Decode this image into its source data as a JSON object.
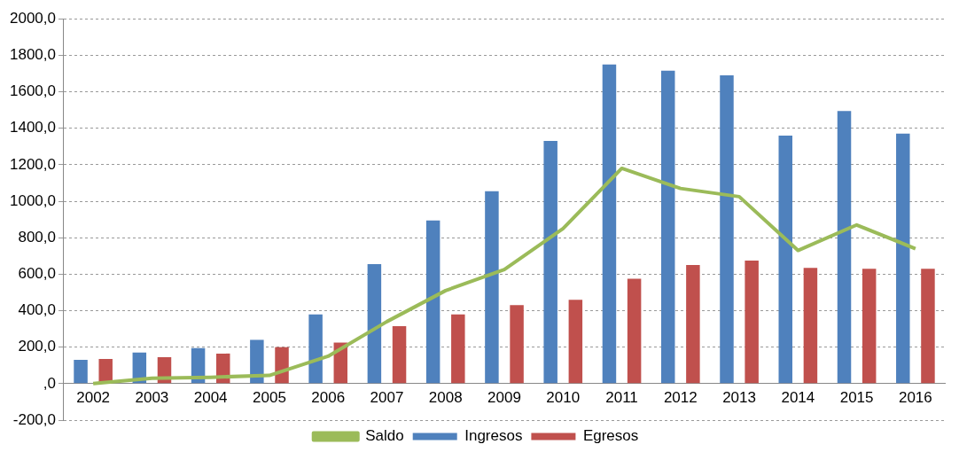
{
  "chart_data": {
    "type": "bar",
    "categories": [
      "2002",
      "2003",
      "2004",
      "2005",
      "2006",
      "2007",
      "2008",
      "2009",
      "2010",
      "2011",
      "2012",
      "2013",
      "2014",
      "2015",
      "2016"
    ],
    "series": [
      {
        "name": "Ingresos",
        "color": "#4f81bd",
        "values": [
          130,
          170,
          195,
          240,
          380,
          655,
          895,
          1055,
          1330,
          1750,
          1715,
          1690,
          1360,
          1495,
          1370
        ]
      },
      {
        "name": "Egresos",
        "color": "#c0504d",
        "values": [
          135,
          145,
          165,
          200,
          225,
          315,
          380,
          430,
          460,
          575,
          650,
          675,
          635,
          630,
          630
        ]
      },
      {
        "name": "Saldo",
        "type": "line",
        "color": "#9bbb59",
        "values": [
          0,
          30,
          35,
          45,
          150,
          340,
          510,
          625,
          850,
          1180,
          1070,
          1025,
          730,
          870,
          740
        ]
      }
    ],
    "ylim": [
      -200,
      2000
    ],
    "yticks": [
      {
        "value": -200,
        "label": "-200,0"
      },
      {
        "value": 0,
        "label": ",0"
      },
      {
        "value": 200,
        "label": "200,0"
      },
      {
        "value": 400,
        "label": "400,0"
      },
      {
        "value": 600,
        "label": "600,0"
      },
      {
        "value": 800,
        "label": "800,0"
      },
      {
        "value": 1000,
        "label": "1000,0"
      },
      {
        "value": 1200,
        "label": "1200,0"
      },
      {
        "value": 1400,
        "label": "1400,0"
      },
      {
        "value": 1600,
        "label": "1600,0"
      },
      {
        "value": 1800,
        "label": "1800,0"
      },
      {
        "value": 2000,
        "label": "2000,0"
      }
    ],
    "grid": "y",
    "line_style": "solid",
    "marker": "none",
    "legend": "bottom"
  }
}
